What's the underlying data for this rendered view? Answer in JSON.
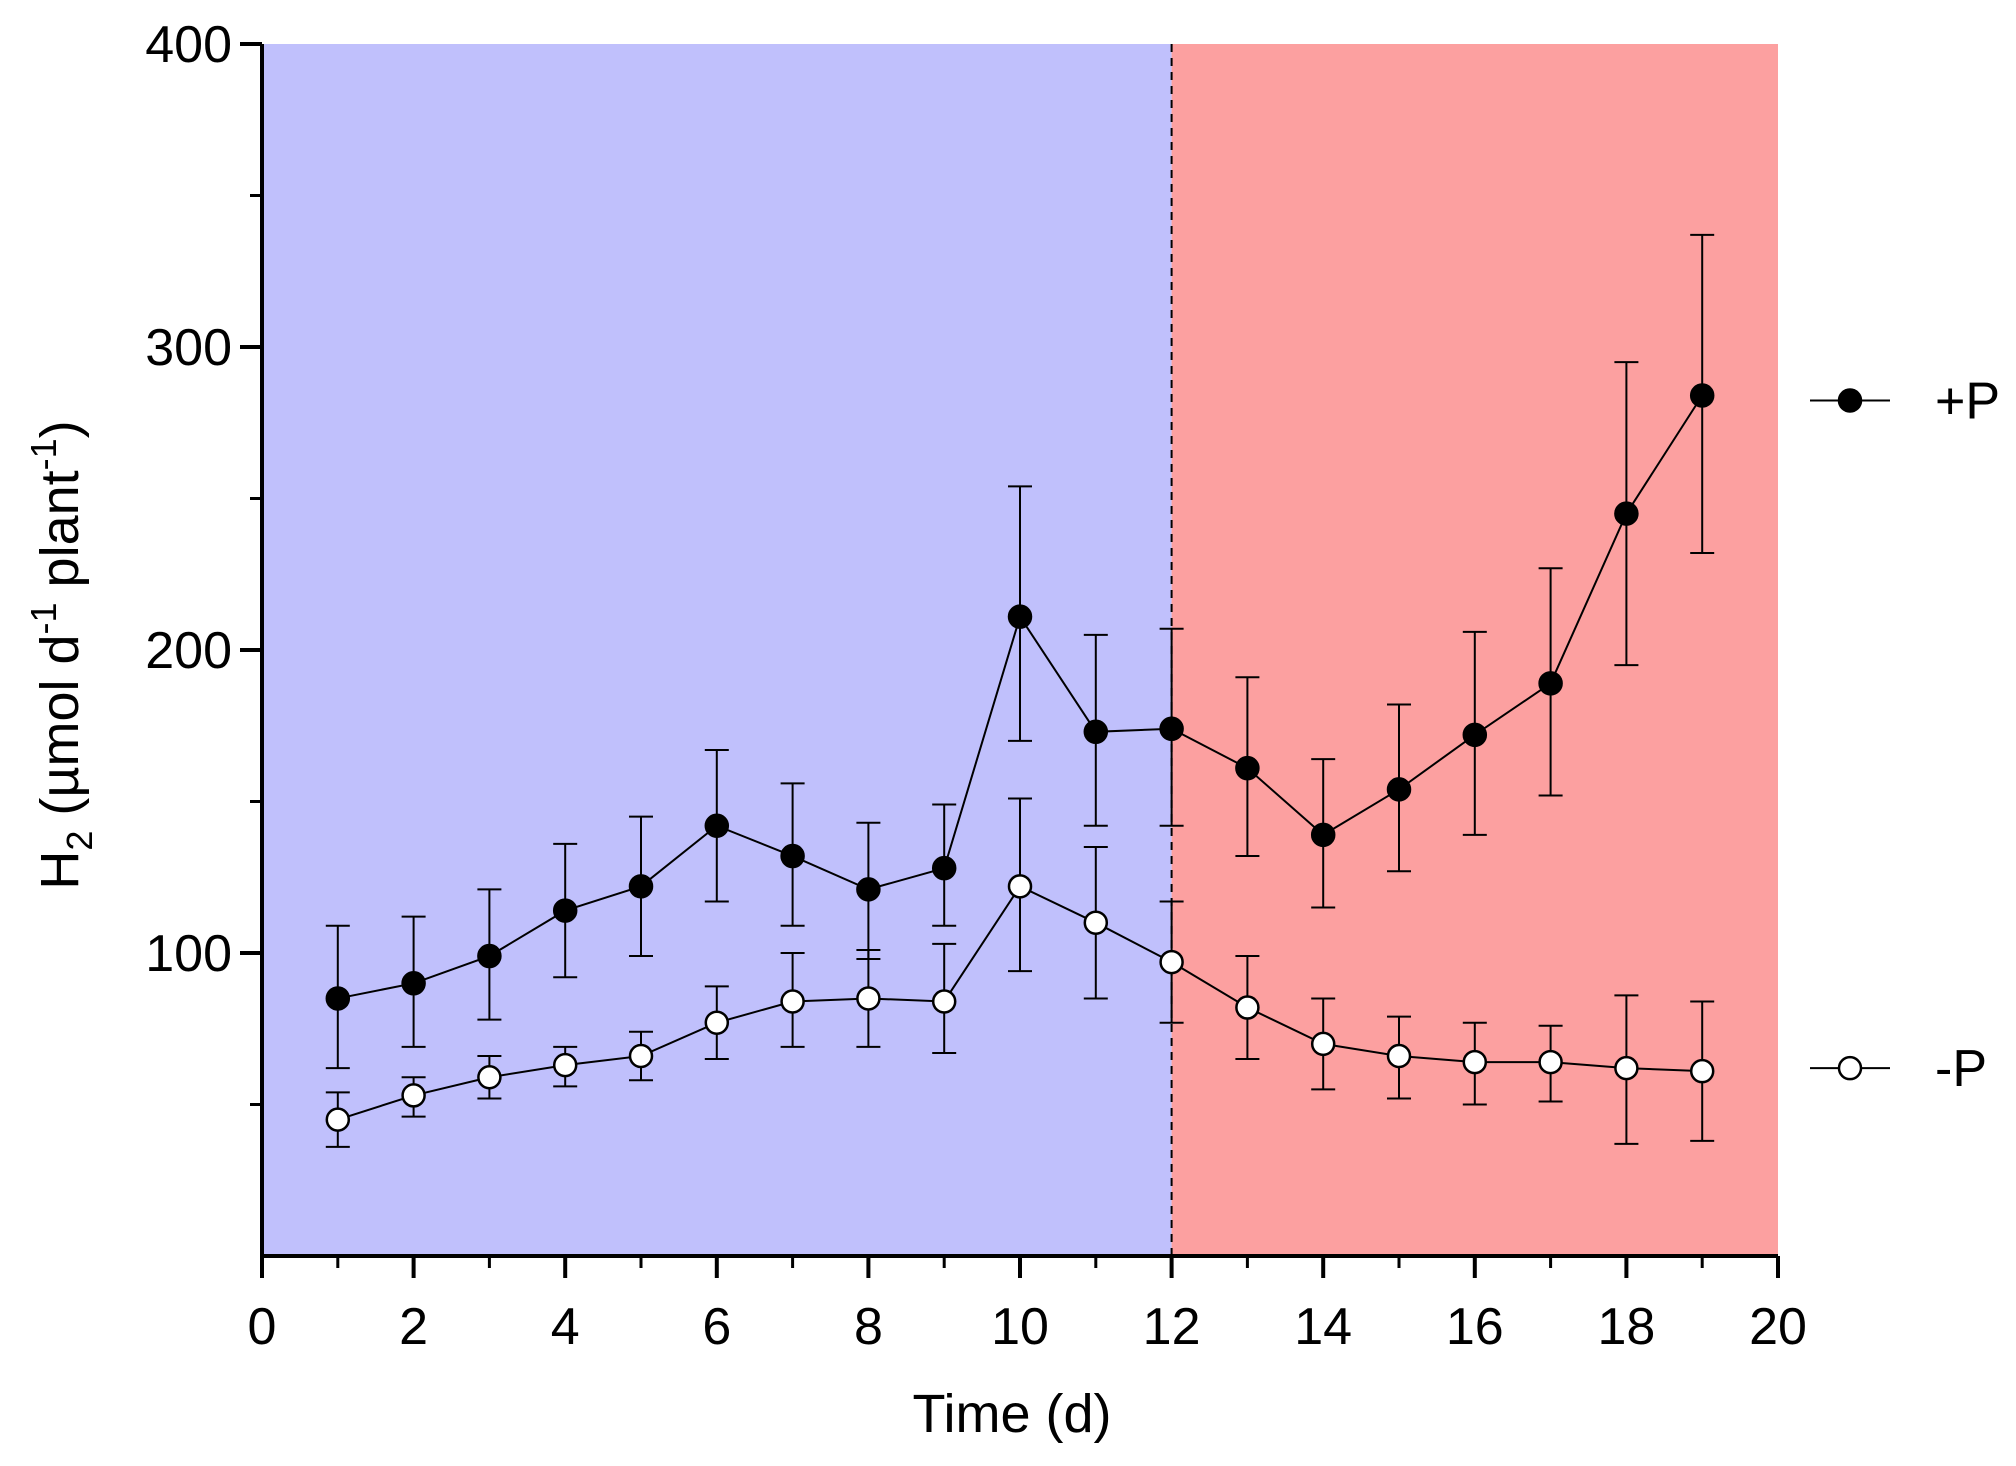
{
  "chart_data": {
    "type": "line",
    "xlabel": "Time (d)",
    "ylabel": {
      "base": "H",
      "sub": "2",
      "part1": " (µmol d",
      "sup1": "-1",
      "part2": " plant",
      "sup2": "-1",
      "part3": ")"
    },
    "xlim": [
      0,
      20
    ],
    "ylim": [
      0,
      400
    ],
    "x_ticks": [
      0,
      2,
      4,
      6,
      8,
      10,
      12,
      14,
      16,
      18,
      20
    ],
    "x_tick_labels": [
      "0",
      "2",
      "4",
      "6",
      "8",
      "10",
      "12",
      "14",
      "16",
      "18",
      "20"
    ],
    "y_ticks": [
      100,
      200,
      300,
      400
    ],
    "y_tick_labels": [
      "100",
      "200",
      "300",
      "400"
    ],
    "y_minor_ticks": [
      50,
      150,
      250,
      350
    ],
    "divider_x": 12,
    "regions": [
      {
        "name": "light-period",
        "from": 0,
        "to": 12,
        "color": "#c0c0fc"
      },
      {
        "name": "dark-period",
        "from": 12,
        "to": 20,
        "color": "#fca0a0"
      }
    ],
    "legend_position": "right",
    "series": [
      {
        "name": "+P",
        "marker": "filled-circle",
        "color": "#000000",
        "x": [
          1,
          2,
          3,
          4,
          5,
          6,
          7,
          8,
          9,
          10,
          11,
          12,
          13,
          14,
          15,
          16,
          17,
          18,
          19
        ],
        "values": [
          85,
          90,
          99,
          114,
          122,
          142,
          132,
          121,
          128,
          211,
          173,
          174,
          161,
          139,
          154,
          172,
          189,
          245,
          284
        ],
        "err_low": [
          23,
          21,
          21,
          22,
          23,
          25,
          23,
          23,
          19,
          41,
          31,
          32,
          29,
          24,
          27,
          33,
          37,
          50,
          52
        ],
        "err_high": [
          24,
          22,
          22,
          22,
          23,
          25,
          24,
          22,
          21,
          43,
          32,
          33,
          30,
          25,
          28,
          34,
          38,
          50,
          53
        ]
      },
      {
        "name": "-P",
        "marker": "open-circle",
        "color": "#000000",
        "x": [
          1,
          2,
          3,
          4,
          5,
          6,
          7,
          8,
          9,
          10,
          11,
          12,
          13,
          14,
          15,
          16,
          17,
          18,
          19
        ],
        "values": [
          45,
          53,
          59,
          63,
          66,
          77,
          84,
          85,
          84,
          122,
          110,
          97,
          82,
          70,
          66,
          64,
          64,
          62,
          61
        ],
        "err_low": [
          9,
          7,
          7,
          7,
          8,
          12,
          15,
          16,
          17,
          28,
          25,
          20,
          17,
          15,
          14,
          14,
          13,
          25,
          23
        ],
        "err_high": [
          9,
          6,
          7,
          6,
          8,
          12,
          16,
          16,
          19,
          29,
          25,
          20,
          17,
          15,
          13,
          13,
          12,
          24,
          23
        ]
      }
    ]
  }
}
